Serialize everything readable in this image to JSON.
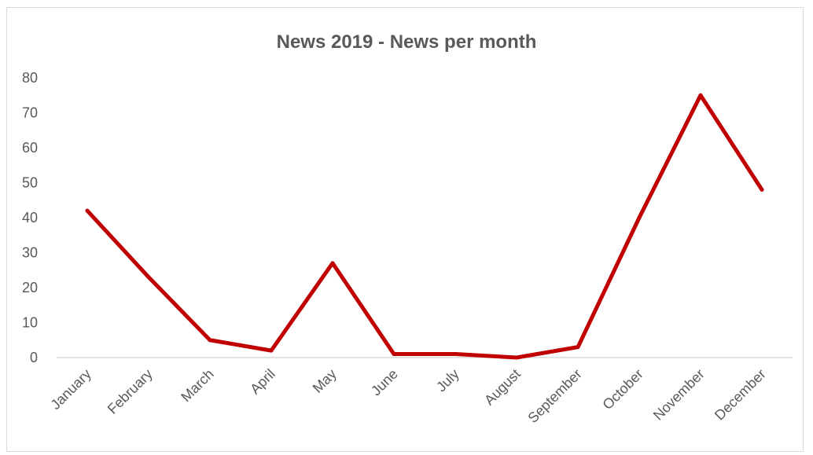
{
  "chart_data": {
    "type": "line",
    "title": "News 2019 - News per month",
    "categories": [
      "January",
      "February",
      "March",
      "April",
      "May",
      "June",
      "July",
      "August",
      "September",
      "October",
      "November",
      "December"
    ],
    "series": [
      {
        "values": [
          42,
          23,
          5,
          2,
          27,
          1,
          1,
          0,
          3,
          40,
          75,
          48
        ],
        "color": "#C00000"
      }
    ],
    "xlabel": "",
    "ylabel": "",
    "ylim": [
      0,
      80
    ],
    "yticks": [
      0,
      10,
      20,
      30,
      40,
      50,
      60,
      70,
      80
    ],
    "grid": false,
    "legend": "none",
    "colors": {
      "line": "#C00000",
      "text": "#595959",
      "axis": "#d9d9d9"
    }
  }
}
